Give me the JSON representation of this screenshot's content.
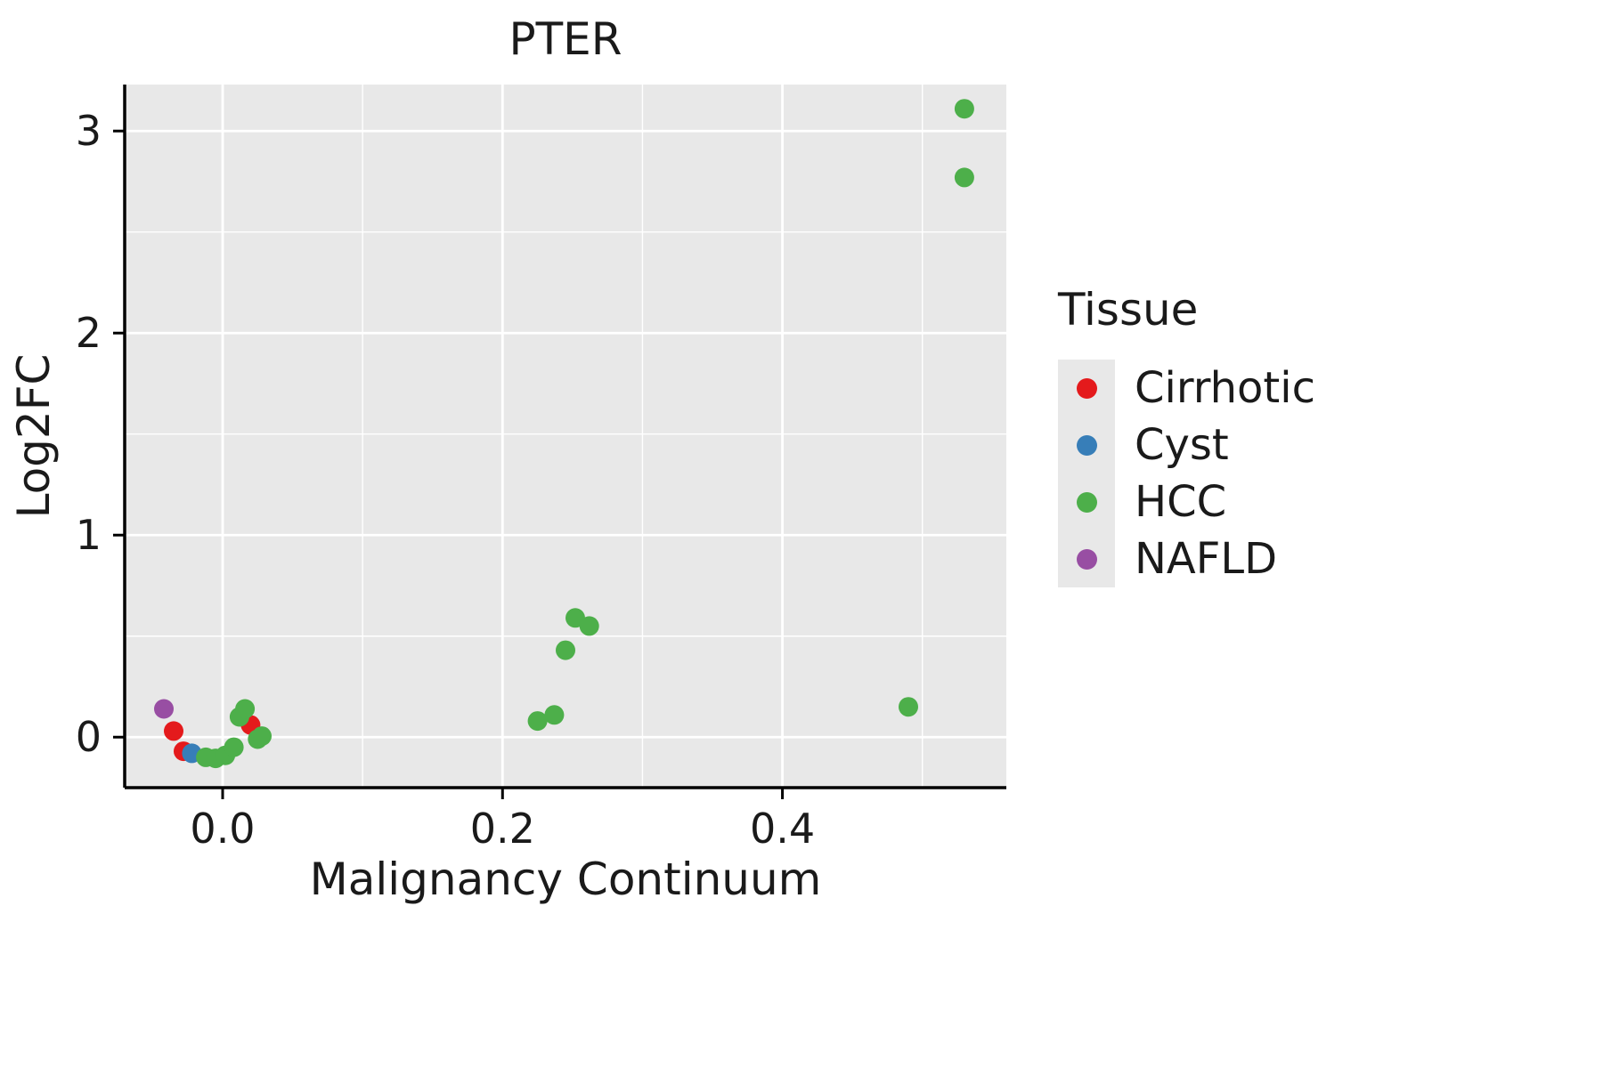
{
  "chart_data": {
    "type": "scatter",
    "title": "PTER",
    "xlabel": "Malignancy Continuum",
    "ylabel": "Log2FC",
    "xlim": [
      -0.07,
      0.56
    ],
    "ylim": [
      -0.25,
      3.23
    ],
    "x_ticks": {
      "values": [
        0.0,
        0.2,
        0.4
      ],
      "labels": [
        "0.0",
        "0.2",
        "0.4"
      ]
    },
    "x_minor_ticks": [
      0.1,
      0.3,
      0.5
    ],
    "y_ticks": {
      "values": [
        0,
        1,
        2,
        3
      ],
      "labels": [
        "0",
        "1",
        "2",
        "3"
      ]
    },
    "y_minor_ticks": [
      0.5,
      1.5,
      2.5
    ],
    "grid": true,
    "panel_background": "#E8E8E8",
    "gridline_color": "#FFFFFF",
    "axis_color": "#000000",
    "point_radius": 11,
    "legend": {
      "title": "Tissue",
      "position": "right"
    },
    "series": [
      {
        "name": "Cirrhotic",
        "color": "#E41A1C",
        "points": [
          [
            -0.035,
            0.03
          ],
          [
            -0.028,
            -0.07
          ],
          [
            0.02,
            0.06
          ]
        ]
      },
      {
        "name": "Cyst",
        "color": "#377EB8",
        "points": [
          [
            -0.022,
            -0.08
          ]
        ]
      },
      {
        "name": "HCC",
        "color": "#4DAF4A",
        "points": [
          [
            -0.012,
            -0.1
          ],
          [
            -0.005,
            -0.105
          ],
          [
            0.002,
            -0.09
          ],
          [
            0.008,
            -0.05
          ],
          [
            0.012,
            0.1
          ],
          [
            0.016,
            0.14
          ],
          [
            0.025,
            -0.01
          ],
          [
            0.028,
            0.005
          ],
          [
            0.225,
            0.08
          ],
          [
            0.237,
            0.11
          ],
          [
            0.245,
            0.43
          ],
          [
            0.252,
            0.59
          ],
          [
            0.262,
            0.55
          ],
          [
            0.49,
            0.15
          ],
          [
            0.53,
            3.11
          ],
          [
            0.53,
            2.77
          ]
        ]
      },
      {
        "name": "NAFLD",
        "color": "#984EA3",
        "points": [
          [
            -0.042,
            0.14
          ]
        ]
      }
    ]
  }
}
